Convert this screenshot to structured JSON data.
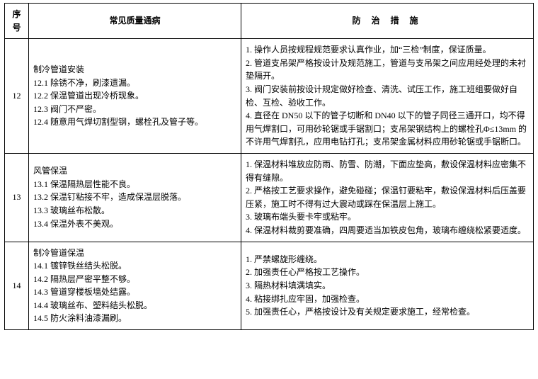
{
  "header": {
    "seq": "序号",
    "issue": "常见质量通病",
    "measure": "防 治 措 施"
  },
  "rows": [
    {
      "seq": "12",
      "issue": "制冷管道安装\n12.1 除锈不净，刷漆遗漏。\n12.2 保温管道出现冷桥现象。\n12.3 阀门不严密。\n12.4 随意用气焊切割型钢，螺栓孔及管子等。",
      "measure": "1. 操作人员按规程规范要求认真作业，加“三检”制度，保证质量。\n2. 管道支吊架严格按设计及规范施工，管道与支吊架之间应用经处理的未衬垫隔开。\n3. 阀门安装前按设计规定做好检查、清洗、试压工作，施工班组要做好自检、互检、验收工作。\n4. 直径在 DN50 以下的管子切断和 DN40 以下的管子同径三通开口，均不得用气焊割口，可用砂轮锯或手锯割口；支吊架钢结构上的螺栓孔Φ≤13mm 的不许用气焊割孔，应用电钻打孔；支吊架金属材料应用砂轮锯或手锯断口。"
    },
    {
      "seq": "13",
      "issue": "风管保温\n13.1 保温隔热层性能不良。\n13.2 保温钉粘接不牢，造成保温层脱落。\n13.3 玻璃丝布松散。\n13.4 保温外表不美观。",
      "measure": "1. 保温材料堆放应防雨、防雪、防潮，下面应垫高，敷设保温材料应密集不得有缝隙。\n2. 严格按工艺要求操作，避免碰碰；保温钉要粘牢，敷设保温材料后压盖要压紧，施工时不得有过大震动或踩在保温层上施工。\n3. 玻璃布端头要卡牢或粘牢。\n4. 保温材料裁剪要准确，四周要适当加铁皮包角，玻璃布缠绕松紧要适度。"
    },
    {
      "seq": "14",
      "issue": "制冷管道保温\n14.1 镀锌铁丝结头松脱。\n14.2 隔热层严密平整不够。\n14.3 管道穿楼板墙处结露。\n14.4 玻璃丝布、塑料结头松脱。\n14.5 防火涂料油漆漏刷。",
      "measure": "1. 严禁螺旋形缠绕。\n2. 加强责任心严格按工艺操作。\n3. 隔热材料填满填实。\n4. 粘接绑扎应牢固，加强检查。\n5. 加强责任心，严格按设计及有关规定要求施工，经常检查。"
    }
  ]
}
